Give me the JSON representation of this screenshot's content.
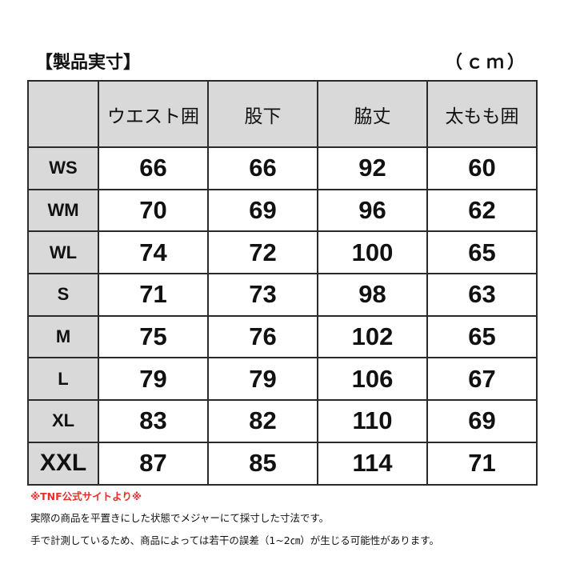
{
  "title": "【製品実寸】",
  "unit": "（ｃｍ）",
  "table": {
    "headers": [
      "",
      "ウエスト囲",
      "股下",
      "脇丈",
      "太もも囲"
    ],
    "rows": [
      {
        "size": "WS",
        "values": [
          "66",
          "66",
          "92",
          "60"
        ]
      },
      {
        "size": "WM",
        "values": [
          "70",
          "69",
          "96",
          "62"
        ]
      },
      {
        "size": "WL",
        "values": [
          "74",
          "72",
          "100",
          "65"
        ]
      },
      {
        "size": "S",
        "values": [
          "71",
          "73",
          "98",
          "63"
        ]
      },
      {
        "size": "M",
        "values": [
          "75",
          "76",
          "102",
          "65"
        ]
      },
      {
        "size": "L",
        "values": [
          "79",
          "79",
          "106",
          "67"
        ]
      },
      {
        "size": "XL",
        "values": [
          "83",
          "82",
          "110",
          "69"
        ]
      },
      {
        "size": "XXL",
        "values": [
          "87",
          "85",
          "114",
          "71"
        ]
      }
    ]
  },
  "notes": {
    "source": "※TNF公式サイトより※",
    "line1": "実際の商品を平置きにした状態でメジャーにて採寸した寸法です。",
    "line2": "手で計測しているため、商品によっては若干の誤差（1~2㎝）が生じる可能性があります。"
  },
  "colors": {
    "header_bg": "#d9d9d9",
    "source_note": "#e5312a"
  }
}
